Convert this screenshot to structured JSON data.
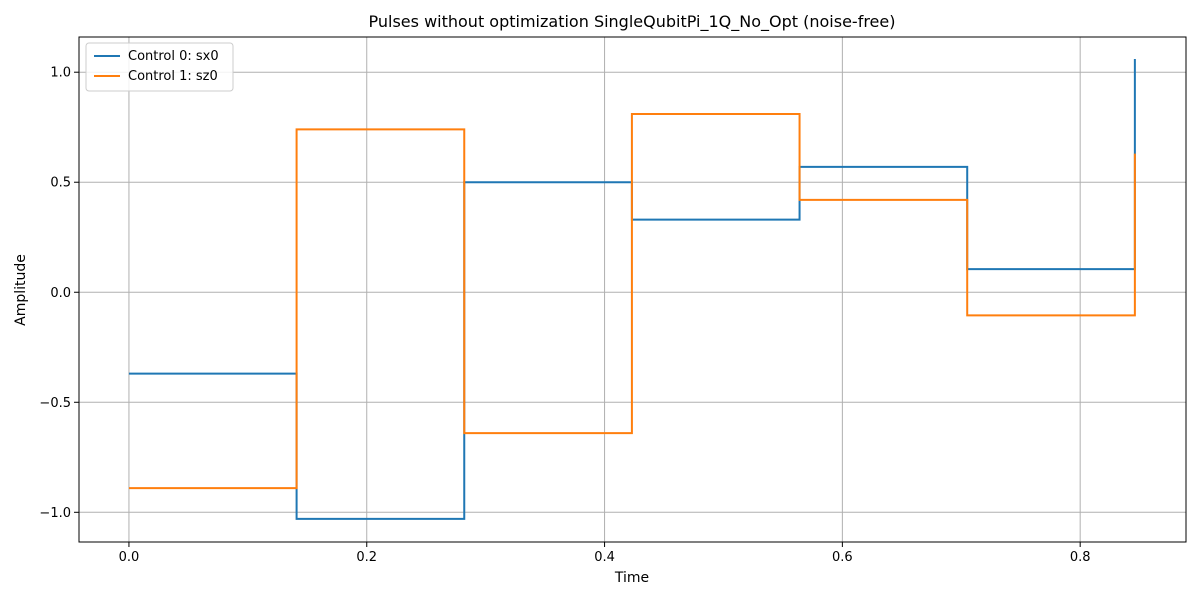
{
  "chart_data": {
    "type": "line",
    "step": "post",
    "title": "Pulses without optimization SingleQubitPi_1Q_No_Opt (noise-free)",
    "xlabel": "Time",
    "ylabel": "Amplitude",
    "xlim": [
      -0.042,
      0.889
    ],
    "ylim": [
      -1.135,
      1.16
    ],
    "xticks": [
      0.0,
      0.2,
      0.4,
      0.6,
      0.8
    ],
    "xtick_labels": [
      "0.0",
      "0.2",
      "0.4",
      "0.6",
      "0.8"
    ],
    "yticks": [
      -1.0,
      -0.5,
      0.0,
      0.5,
      1.0
    ],
    "ytick_labels": [
      "−1.0",
      "−0.5",
      "0.0",
      "0.5",
      "1.0"
    ],
    "grid": true,
    "legend_position": "top-left",
    "x": [
      0.0,
      0.141,
      0.282,
      0.423,
      0.564,
      0.705,
      0.846
    ],
    "series": [
      {
        "name": "Control 0: sx0",
        "color": "#1f77b4",
        "values": [
          -0.37,
          -1.03,
          0.5,
          0.33,
          0.57,
          0.105,
          1.06
        ]
      },
      {
        "name": "Control 1: sz0",
        "color": "#ff7f0e",
        "values": [
          -0.89,
          0.74,
          -0.64,
          0.81,
          0.42,
          -0.105,
          0.63
        ]
      }
    ]
  }
}
